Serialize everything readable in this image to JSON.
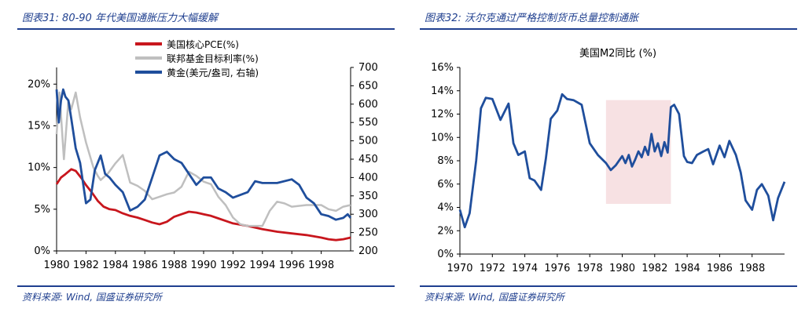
{
  "left": {
    "figure_title": "图表31: 80-90 年代美国通胀压力大幅缓解",
    "source": "资料来源: Wind, 国盛证券研究所"
  },
  "right": {
    "figure_title": "图表32: 沃尔克通过严格控制货币总量控制通胀",
    "source": "资料来源: Wind, 国盛证券研究所"
  },
  "colors": {
    "pce": "#c8161d",
    "fed": "#bfbfbf",
    "gold": "#1f4e9c",
    "m2": "#1f4e9c",
    "shade": "#f7e1e3",
    "header": "#1f3f8f"
  },
  "chart_data": [
    {
      "type": "line",
      "legend_position": "top-center",
      "x_tick_labels": [
        "1980",
        "1982",
        "1984",
        "1986",
        "1988",
        "1990",
        "1992",
        "1994",
        "1996",
        "1998"
      ],
      "xlim": [
        1980,
        2000
      ],
      "y_left": {
        "lim": [
          0,
          22
        ],
        "tick_values": [
          0,
          5,
          10,
          15,
          20
        ],
        "tick_labels": [
          "0%",
          "5%",
          "10%",
          "15%",
          "20%"
        ]
      },
      "y_right": {
        "lim": [
          200,
          700
        ],
        "tick_values": [
          200,
          250,
          300,
          350,
          400,
          450,
          500,
          550,
          600,
          650,
          700
        ],
        "tick_labels": [
          "200",
          "250",
          "300",
          "350",
          "400",
          "450",
          "500",
          "550",
          "600",
          "650",
          "700"
        ]
      },
      "series": [
        {
          "name": "美国核心PCE(%)",
          "key": "pce",
          "axis": "left",
          "x": [
            1980,
            1980.3,
            1980.6,
            1981,
            1981.3,
            1981.7,
            1982,
            1982.4,
            1982.8,
            1983.2,
            1983.6,
            1984,
            1984.5,
            1985,
            1985.5,
            1986,
            1986.5,
            1987,
            1987.5,
            1988,
            1988.5,
            1989,
            1989.5,
            1990,
            1990.5,
            1991,
            1991.5,
            1992,
            1993,
            1994,
            1995,
            1996,
            1997,
            1998,
            1998.5,
            1999,
            1999.5,
            2000
          ],
          "y": [
            8.0,
            8.8,
            9.2,
            9.8,
            9.6,
            8.7,
            7.9,
            7.0,
            6.0,
            5.3,
            5.0,
            4.9,
            4.5,
            4.2,
            4.0,
            3.7,
            3.4,
            3.2,
            3.5,
            4.1,
            4.4,
            4.7,
            4.6,
            4.4,
            4.2,
            3.9,
            3.6,
            3.3,
            3.0,
            2.6,
            2.3,
            2.1,
            1.9,
            1.6,
            1.4,
            1.3,
            1.4,
            1.6
          ]
        },
        {
          "name": "联邦基金目标利率(%)",
          "key": "fed",
          "axis": "left",
          "x": [
            1980,
            1980.2,
            1980.5,
            1980.8,
            1981,
            1981.3,
            1981.6,
            1982,
            1982.5,
            1982.8,
            1983,
            1983.5,
            1984,
            1984.5,
            1985,
            1985.5,
            1986,
            1986.5,
            1987,
            1987.5,
            1988,
            1988.5,
            1989,
            1989.5,
            1990,
            1990.5,
            1991,
            1991.5,
            1992,
            1992.5,
            1993,
            1994,
            1994.5,
            1995,
            1995.5,
            1996,
            1997,
            1998,
            1998.5,
            1999,
            1999.5,
            2000
          ],
          "y": [
            14,
            19,
            11,
            18,
            17,
            19,
            16,
            13,
            10,
            9,
            8.5,
            9.3,
            10.5,
            11.5,
            8.2,
            7.8,
            7.2,
            6.2,
            6.5,
            6.8,
            7.0,
            7.7,
            9.5,
            9.0,
            8.3,
            8.0,
            6.5,
            5.5,
            4.0,
            3.2,
            3.0,
            3.0,
            4.8,
            5.9,
            5.7,
            5.3,
            5.5,
            5.5,
            5.0,
            4.8,
            5.3,
            5.5
          ]
        },
        {
          "name": "黄金(美元/盎司, 右轴)",
          "key": "gold",
          "axis": "right",
          "x": [
            1980,
            1980.15,
            1980.3,
            1980.45,
            1980.6,
            1980.8,
            1981,
            1981.3,
            1981.6,
            1982,
            1982.3,
            1982.6,
            1983,
            1983.3,
            1983.6,
            1984,
            1984.5,
            1985,
            1985.5,
            1986,
            1986.5,
            1987,
            1987.5,
            1988,
            1988.5,
            1989,
            1989.5,
            1990,
            1990.5,
            1991,
            1991.5,
            1992,
            1993,
            1993.5,
            1994,
            1995,
            1996,
            1996.5,
            1997,
            1997.5,
            1998,
            1998.5,
            1999,
            1999.5,
            1999.8,
            2000
          ],
          "y": [
            640,
            550,
            610,
            640,
            620,
            610,
            560,
            480,
            440,
            330,
            340,
            420,
            460,
            410,
            400,
            380,
            360,
            310,
            320,
            340,
            400,
            460,
            470,
            450,
            440,
            410,
            380,
            400,
            400,
            370,
            360,
            345,
            360,
            390,
            385,
            385,
            395,
            380,
            345,
            330,
            300,
            295,
            285,
            290,
            300,
            290
          ]
        }
      ]
    },
    {
      "type": "line",
      "title": "美国M2同比 (%)",
      "x_tick_labels": [
        "1970",
        "1972",
        "1974",
        "1976",
        "1978",
        "1980",
        "1982",
        "1984",
        "1986",
        "1988"
      ],
      "xlim": [
        1970,
        1990
      ],
      "ylim": [
        0,
        16
      ],
      "y_tick_values": [
        0,
        2,
        4,
        6,
        8,
        10,
        12,
        14,
        16
      ],
      "y_tick_labels": [
        "0%",
        "2%",
        "4%",
        "6%",
        "8%",
        "10%",
        "12%",
        "14%",
        "16%"
      ],
      "shaded_region": {
        "x": [
          1979,
          1983
        ],
        "y": [
          4.3,
          13.2
        ]
      },
      "series": [
        {
          "key": "m2",
          "x": [
            1970,
            1970.3,
            1970.6,
            1971,
            1971.3,
            1971.6,
            1972,
            1972.5,
            1973,
            1973.3,
            1973.6,
            1974,
            1974.3,
            1974.6,
            1975,
            1975.3,
            1975.6,
            1976,
            1976.3,
            1976.6,
            1977,
            1977.5,
            1978,
            1978.5,
            1979,
            1979.3,
            1979.6,
            1980,
            1980.2,
            1980.4,
            1980.6,
            1980.8,
            1981,
            1981.2,
            1981.4,
            1981.6,
            1981.8,
            1982,
            1982.2,
            1982.4,
            1982.6,
            1982.8,
            1983,
            1983.2,
            1983.5,
            1983.8,
            1984,
            1984.3,
            1984.6,
            1985,
            1985.3,
            1985.6,
            1986,
            1986.3,
            1986.6,
            1987,
            1987.3,
            1987.6,
            1988,
            1988.3,
            1988.6,
            1989,
            1989.3,
            1989.6,
            1990
          ],
          "y": [
            3.8,
            2.3,
            3.5,
            8,
            12.5,
            13.4,
            13.3,
            11.5,
            12.9,
            9.5,
            8.5,
            8.8,
            6.5,
            6.3,
            5.5,
            8.2,
            11.6,
            12.3,
            13.7,
            13.3,
            13.2,
            12.8,
            9.5,
            8.5,
            7.8,
            7.2,
            7.6,
            8.4,
            7.8,
            8.5,
            7.5,
            8.1,
            8.8,
            8.3,
            9.2,
            8.5,
            10.3,
            8.8,
            9.5,
            8.4,
            9.6,
            8.7,
            12.6,
            12.8,
            12.0,
            8.4,
            7.9,
            7.8,
            8.5,
            8.8,
            9.0,
            7.7,
            9.3,
            8.3,
            9.7,
            8.5,
            7.0,
            4.6,
            3.8,
            5.5,
            6.0,
            5.0,
            2.9,
            4.8,
            6.2
          ]
        }
      ]
    }
  ]
}
